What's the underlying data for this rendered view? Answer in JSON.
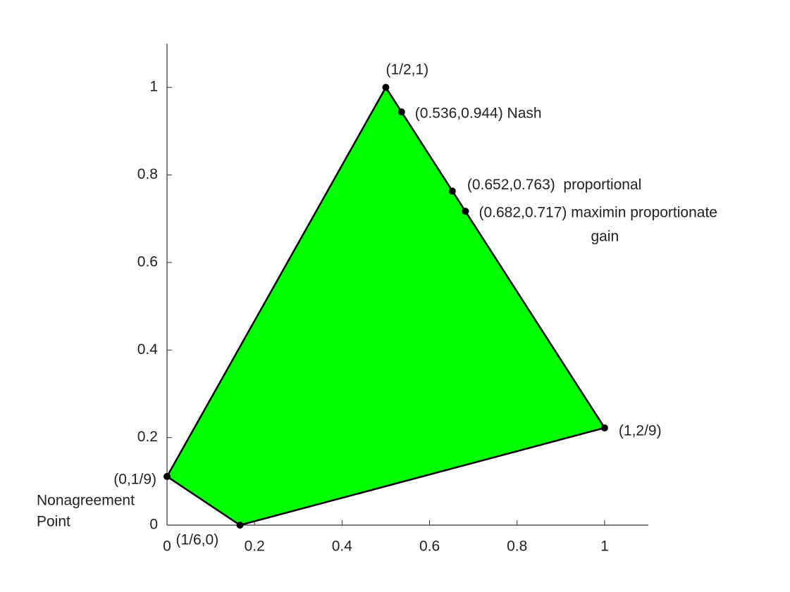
{
  "chart_data": {
    "type": "polygon",
    "xlim": [
      0,
      1.1
    ],
    "ylim": [
      0,
      1.1
    ],
    "xticks": [
      0,
      0.2,
      0.4,
      0.6,
      0.8,
      1
    ],
    "yticks": [
      0,
      0.2,
      0.4,
      0.6,
      0.8,
      1
    ],
    "polygon": {
      "x": [
        0,
        0.1667,
        1,
        0.5
      ],
      "y": [
        0.1111,
        0,
        0.2222,
        1
      ],
      "color": "#00ff00"
    },
    "points": [
      {
        "x": 0,
        "y": 0.1111,
        "label": [
          "(0,1/9)",
          "Nonagreement",
          "Point"
        ]
      },
      {
        "x": 0.1667,
        "y": 0,
        "label": [
          "(1/6,0)"
        ]
      },
      {
        "x": 1,
        "y": 0.2222,
        "label": [
          "(1,2/9)"
        ]
      },
      {
        "x": 0.5,
        "y": 1,
        "label": [
          "(1/2,1)"
        ]
      },
      {
        "x": 0.536,
        "y": 0.944,
        "label": [
          "(0.536,0.944) Nash"
        ]
      },
      {
        "x": 0.652,
        "y": 0.763,
        "label": [
          "(0.652,0.763)  proportional"
        ]
      },
      {
        "x": 0.682,
        "y": 0.717,
        "label": [
          "(0.682,0.717) maximin proportionate",
          "gain"
        ]
      }
    ]
  }
}
